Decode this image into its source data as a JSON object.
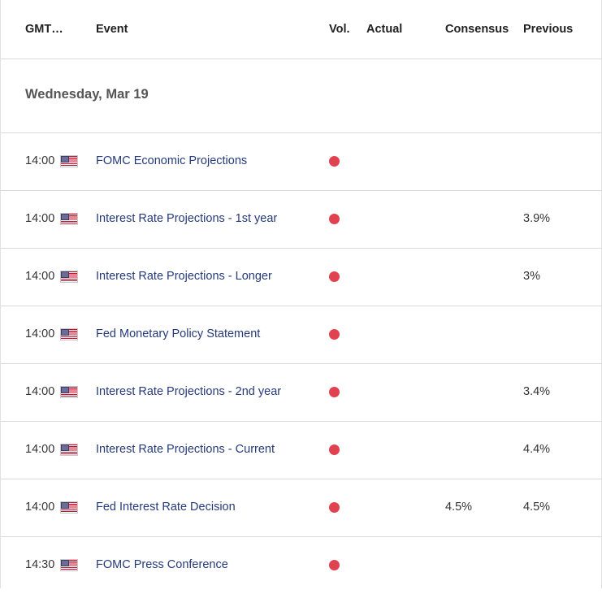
{
  "columns": {
    "gmt": "GMT…",
    "event": "Event",
    "vol": "Vol.",
    "actual": "Actual",
    "consensus": "Consensus",
    "previous": "Previous"
  },
  "date_group": "Wednesday, Mar 19",
  "volatility_color": "#e0424f",
  "event_link_color": "#253a7a",
  "rows": [
    {
      "time": "14:00",
      "flag": "us-flag-icon",
      "event": "FOMC Economic Projections",
      "volatility": "high",
      "actual": "",
      "consensus": "",
      "previous": ""
    },
    {
      "time": "14:00",
      "flag": "us-flag-icon",
      "event": "Interest Rate Projections - 1st year",
      "volatility": "high",
      "actual": "",
      "consensus": "",
      "previous": "3.9%"
    },
    {
      "time": "14:00",
      "flag": "us-flag-icon",
      "event": "Interest Rate Projections - Longer",
      "volatility": "high",
      "actual": "",
      "consensus": "",
      "previous": "3%"
    },
    {
      "time": "14:00",
      "flag": "us-flag-icon",
      "event": "Fed Monetary Policy Statement",
      "volatility": "high",
      "actual": "",
      "consensus": "",
      "previous": ""
    },
    {
      "time": "14:00",
      "flag": "us-flag-icon",
      "event": "Interest Rate Projections - 2nd year",
      "volatility": "high",
      "actual": "",
      "consensus": "",
      "previous": "3.4%"
    },
    {
      "time": "14:00",
      "flag": "us-flag-icon",
      "event": "Interest Rate Projections - Current",
      "volatility": "high",
      "actual": "",
      "consensus": "",
      "previous": "4.4%"
    },
    {
      "time": "14:00",
      "flag": "us-flag-icon",
      "event": "Fed Interest Rate Decision",
      "volatility": "high",
      "actual": "",
      "consensus": "4.5%",
      "previous": "4.5%"
    },
    {
      "time": "14:30",
      "flag": "us-flag-icon",
      "event": "FOMC Press Conference",
      "volatility": "high",
      "actual": "",
      "consensus": "",
      "previous": ""
    }
  ]
}
